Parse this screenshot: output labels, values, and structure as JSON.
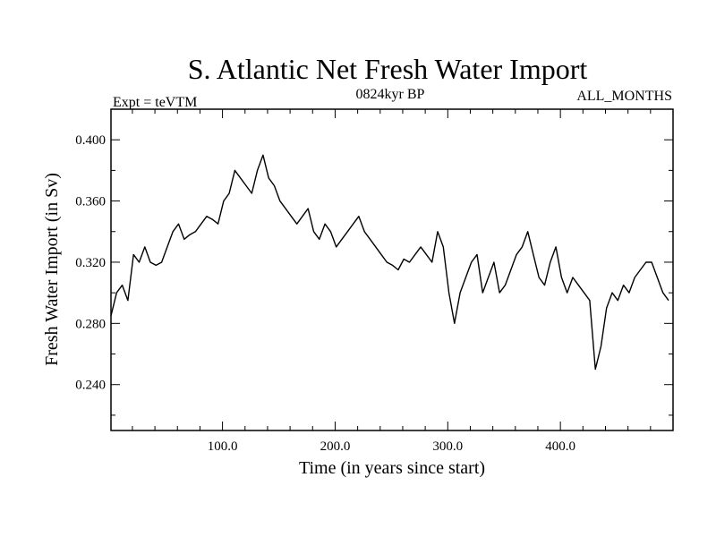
{
  "chart_data": {
    "type": "line",
    "title": "S. Atlantic Net Fresh Water Import",
    "subtitle_left": "Expt = teVTM",
    "subtitle_center": "0824kyr BP",
    "subtitle_right": "ALL_MONTHS",
    "xlabel": "Time (in years since start)",
    "ylabel": "Fresh Water Import (in Sv)",
    "xlim": [
      1,
      500
    ],
    "ylim": [
      0.21,
      0.42
    ],
    "x_ticks": [
      100,
      200,
      300,
      400
    ],
    "x_tick_labels": [
      "100.0",
      "200.0",
      "300.0",
      "400.0"
    ],
    "y_ticks": [
      0.24,
      0.28,
      0.32,
      0.36,
      0.4
    ],
    "y_tick_labels": [
      "0.240",
      "0.280",
      "0.320",
      "0.360",
      "0.400"
    ],
    "grid": false,
    "series": [
      {
        "name": "S. Atlantic Net Fresh Water Import",
        "x_start": 1,
        "x_step": 5,
        "values": [
          0.285,
          0.3,
          0.305,
          0.295,
          0.325,
          0.32,
          0.33,
          0.32,
          0.318,
          0.32,
          0.33,
          0.34,
          0.345,
          0.335,
          0.338,
          0.34,
          0.345,
          0.35,
          0.348,
          0.345,
          0.36,
          0.365,
          0.38,
          0.375,
          0.37,
          0.365,
          0.38,
          0.39,
          0.375,
          0.37,
          0.36,
          0.355,
          0.35,
          0.345,
          0.35,
          0.355,
          0.34,
          0.335,
          0.345,
          0.34,
          0.33,
          0.335,
          0.34,
          0.345,
          0.35,
          0.34,
          0.335,
          0.33,
          0.325,
          0.32,
          0.318,
          0.315,
          0.322,
          0.32,
          0.325,
          0.33,
          0.325,
          0.32,
          0.34,
          0.33,
          0.3,
          0.28,
          0.3,
          0.31,
          0.32,
          0.325,
          0.3,
          0.31,
          0.32,
          0.3,
          0.305,
          0.315,
          0.325,
          0.33,
          0.34,
          0.325,
          0.31,
          0.305,
          0.32,
          0.33,
          0.31,
          0.3,
          0.31,
          0.305,
          0.3,
          0.295,
          0.25,
          0.265,
          0.29,
          0.3,
          0.295,
          0.305,
          0.3,
          0.31,
          0.315,
          0.32,
          0.32,
          0.31,
          0.3,
          0.295
        ]
      }
    ]
  }
}
